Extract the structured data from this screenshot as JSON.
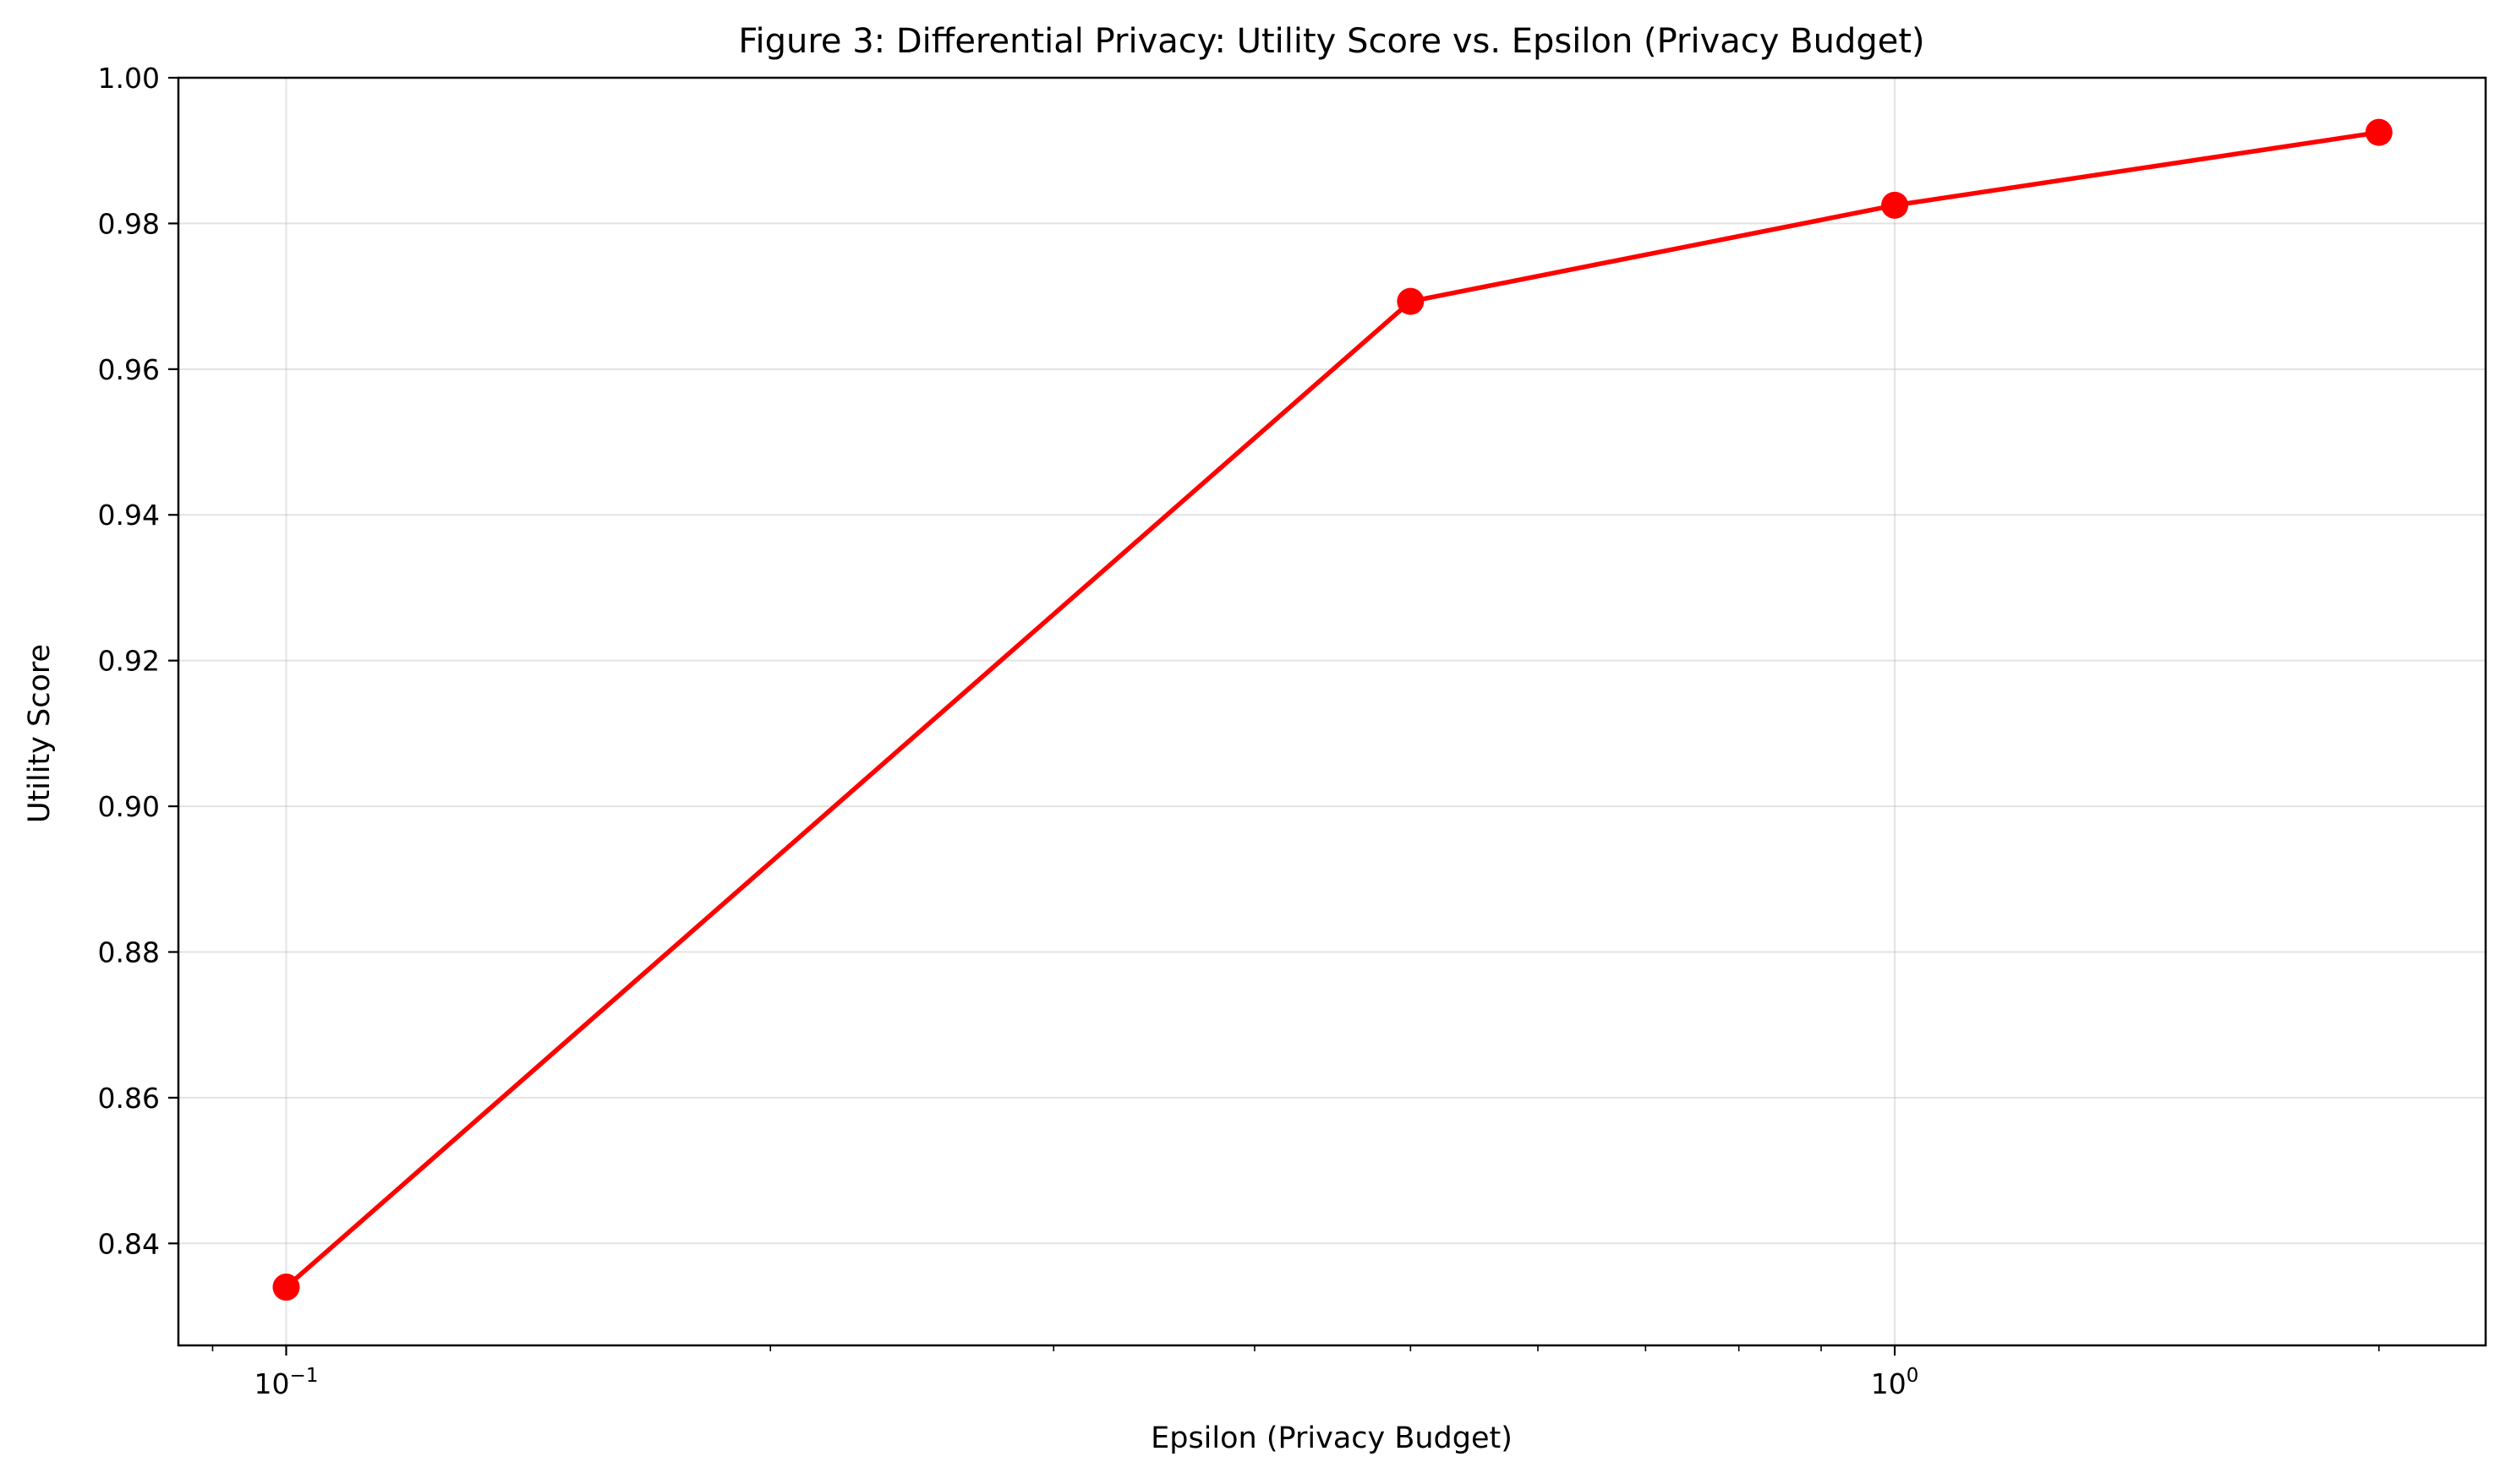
{
  "chart_data": {
    "type": "line",
    "title": "Figure 3: Differential Privacy: Utility Score vs. Epsilon (Privacy Budget)",
    "xlabel": "Epsilon (Privacy Budget)",
    "ylabel": "Utility Score",
    "x_scale": "log",
    "xlim": [
      0.0857,
      2.33
    ],
    "ylim": [
      0.826,
      1.0
    ],
    "x_major_ticks": [
      {
        "value": 0.1,
        "base": "10",
        "exp": "−1"
      },
      {
        "value": 1.0,
        "base": "10",
        "exp": "0"
      }
    ],
    "x_minor_ticks": [
      0.09,
      0.2,
      0.3,
      0.4,
      0.5,
      0.6,
      0.7,
      0.8,
      0.9,
      2.0
    ],
    "y_ticks": [
      0.84,
      0.86,
      0.88,
      0.9,
      0.92,
      0.94,
      0.96,
      0.98,
      1.0
    ],
    "y_tick_labels": [
      "0.84",
      "0.86",
      "0.88",
      "0.90",
      "0.92",
      "0.94",
      "0.96",
      "0.98",
      "1.00"
    ],
    "grid": true,
    "series": [
      {
        "color": "#ff0000",
        "marker": "circle",
        "x": [
          0.1,
          0.5,
          1.0,
          2.0
        ],
        "y": [
          0.834,
          0.9693,
          0.9825,
          0.9925
        ]
      }
    ]
  }
}
